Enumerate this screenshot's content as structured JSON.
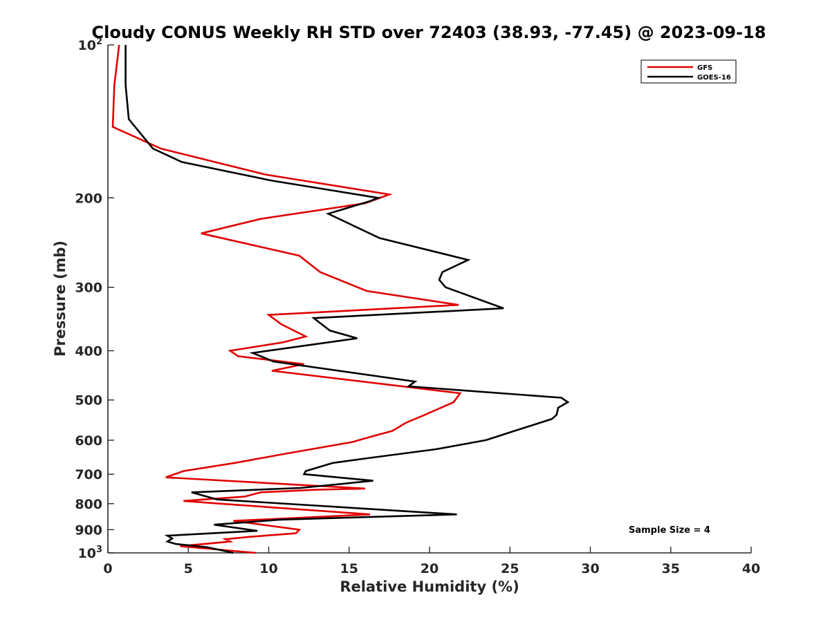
{
  "chart_data": {
    "type": "line",
    "title": "Cloudy CONUS Weekly RH STD over 72403 (38.93, -77.45) @ 2023-09-18",
    "xlabel": "Relative Humidity (%)",
    "ylabel": "Pressure (mb)",
    "xlim": [
      0,
      40
    ],
    "ylim": [
      100,
      1000
    ],
    "y_scale": "log",
    "y_reversed": true,
    "grid": false,
    "legend_position": "top-right",
    "x_ticks": [
      0,
      5,
      10,
      15,
      20,
      25,
      30,
      35,
      40
    ],
    "x_tick_labels": [
      "0",
      "5",
      "10",
      "15",
      "20",
      "25",
      "30",
      "35",
      "40"
    ],
    "y_ticks": [
      100,
      200,
      300,
      400,
      500,
      600,
      700,
      800,
      900,
      1000
    ],
    "y_tick_labels": [
      {
        "base": "10",
        "exp": "2"
      },
      {
        "base": "200",
        "exp": ""
      },
      {
        "base": "300",
        "exp": ""
      },
      {
        "base": "400",
        "exp": ""
      },
      {
        "base": "500",
        "exp": ""
      },
      {
        "base": "600",
        "exp": ""
      },
      {
        "base": "700",
        "exp": ""
      },
      {
        "base": "800",
        "exp": ""
      },
      {
        "base": "900",
        "exp": ""
      },
      {
        "base": "10",
        "exp": "3"
      }
    ],
    "annotation": "Sample Size = 4",
    "series": [
      {
        "name": "GFS",
        "color": "#e00000",
        "x": [
          0.7,
          0.4,
          0.3,
          3.3,
          9.8,
          17.5,
          16.0,
          9.5,
          5.8,
          11.9,
          13.2,
          16.1,
          21.8,
          10.0,
          10.8,
          12.3,
          10.9,
          7.6,
          8.1,
          12.2,
          10.2,
          21.9,
          21.5,
          19.7,
          18.5,
          17.7,
          16.4,
          15.2,
          10.8,
          7.9,
          4.7,
          3.6,
          16.0,
          13.0,
          9.5,
          8.5,
          4.7,
          7.0,
          16.3,
          7.8,
          11.9,
          11.7,
          8.8,
          7.3,
          7.6,
          4.5,
          9.2
        ],
        "y": [
          100,
          120,
          145,
          160,
          180,
          197,
          205,
          220,
          235,
          260,
          280,
          305,
          325,
          340,
          355,
          375,
          385,
          400,
          410,
          425,
          438,
          485,
          505,
          535,
          555,
          575,
          590,
          605,
          640,
          665,
          690,
          710,
          747,
          751,
          760,
          775,
          790,
          800,
          840,
          865,
          900,
          915,
          930,
          940,
          950,
          970,
          1000
        ],
        "unit": "%"
      },
      {
        "name": "GOES-16",
        "color": "#000000",
        "x": [
          1.1,
          1.1,
          1.1,
          1.3,
          2.8,
          4.6,
          10.2,
          16.8,
          16.3,
          13.7,
          16.9,
          22.4,
          20.8,
          20.6,
          21.0,
          24.6,
          12.8,
          13.8,
          15.5,
          9.0,
          10.3,
          19.1,
          18.7,
          28.2,
          28.6,
          28.0,
          27.9,
          27.6,
          25.3,
          23.5,
          20.4,
          16.3,
          14.0,
          12.3,
          12.2,
          16.5,
          12.0,
          5.2,
          6.8,
          21.7,
          10.7,
          6.6,
          9.3,
          3.7,
          4.0,
          3.7,
          4.2,
          6.2,
          7.8
        ],
        "y": [
          100,
          112,
          120,
          140,
          160,
          170,
          185,
          200,
          203,
          215,
          240,
          265,
          280,
          290,
          300,
          330,
          345,
          365,
          378,
          404,
          420,
          460,
          470,
          495,
          505,
          518,
          535,
          545,
          575,
          600,
          625,
          650,
          665,
          690,
          700,
          721,
          745,
          760,
          785,
          840,
          860,
          880,
          905,
          925,
          937,
          950,
          960,
          975,
          1000
        ],
        "unit": "%"
      }
    ]
  }
}
